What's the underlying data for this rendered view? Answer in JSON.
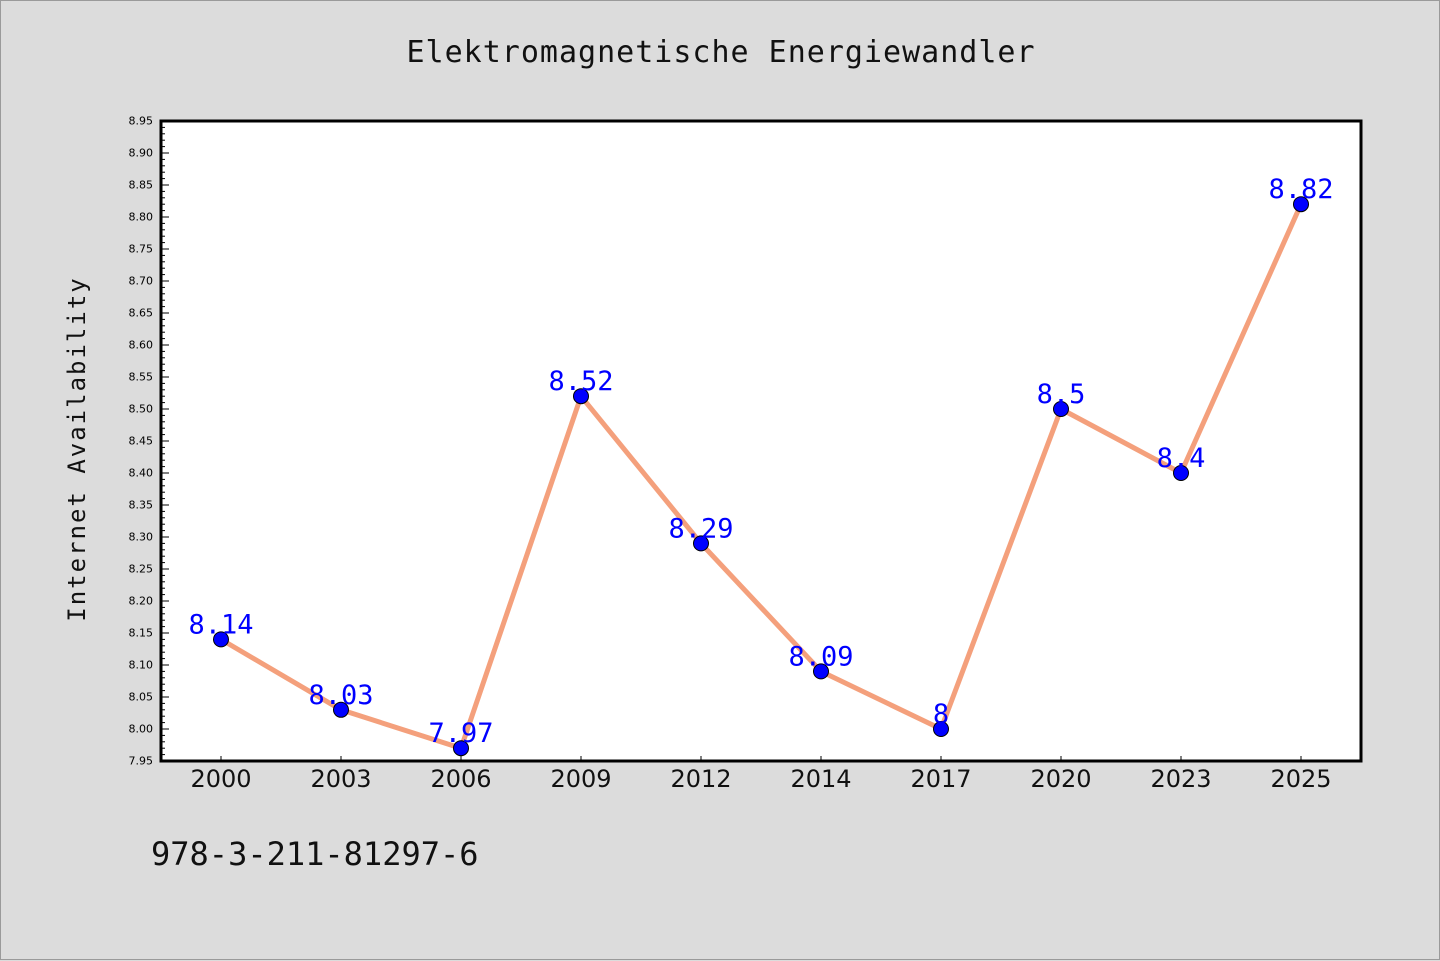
{
  "chart_data": {
    "type": "line",
    "title": "Elektromagnetische Energiewandler",
    "xlabel": "",
    "ylabel": "Internet Availability",
    "categories": [
      "2000",
      "2003",
      "2006",
      "2009",
      "2012",
      "2014",
      "2017",
      "2020",
      "2023",
      "2025"
    ],
    "series": [
      {
        "values": [
          8.14,
          8.03,
          7.97,
          8.52,
          8.29,
          8.09,
          8.0,
          8.5,
          8.4,
          8.82
        ],
        "labels": [
          "8.14",
          "8.03",
          "7.97",
          "8.52",
          "8.29",
          "8.09",
          "8",
          "8.5",
          "8.4",
          "8.82"
        ]
      }
    ],
    "ylim": [
      7.95,
      8.95
    ],
    "yticks": [
      "7.95",
      "8.00",
      "8.05",
      "8.10",
      "8.15",
      "8.20",
      "8.25",
      "8.30",
      "8.35",
      "8.40",
      "8.45",
      "8.50",
      "8.55",
      "8.60",
      "8.65",
      "8.70",
      "8.75",
      "8.80",
      "8.85",
      "8.90",
      "8.95"
    ],
    "grid": false,
    "colors": {
      "line": "#f4a07c",
      "marker": "#0000ff",
      "label": "#0000ff",
      "frame": "#000000"
    }
  },
  "footer": {
    "isbn": "978-3-211-81297-6"
  }
}
